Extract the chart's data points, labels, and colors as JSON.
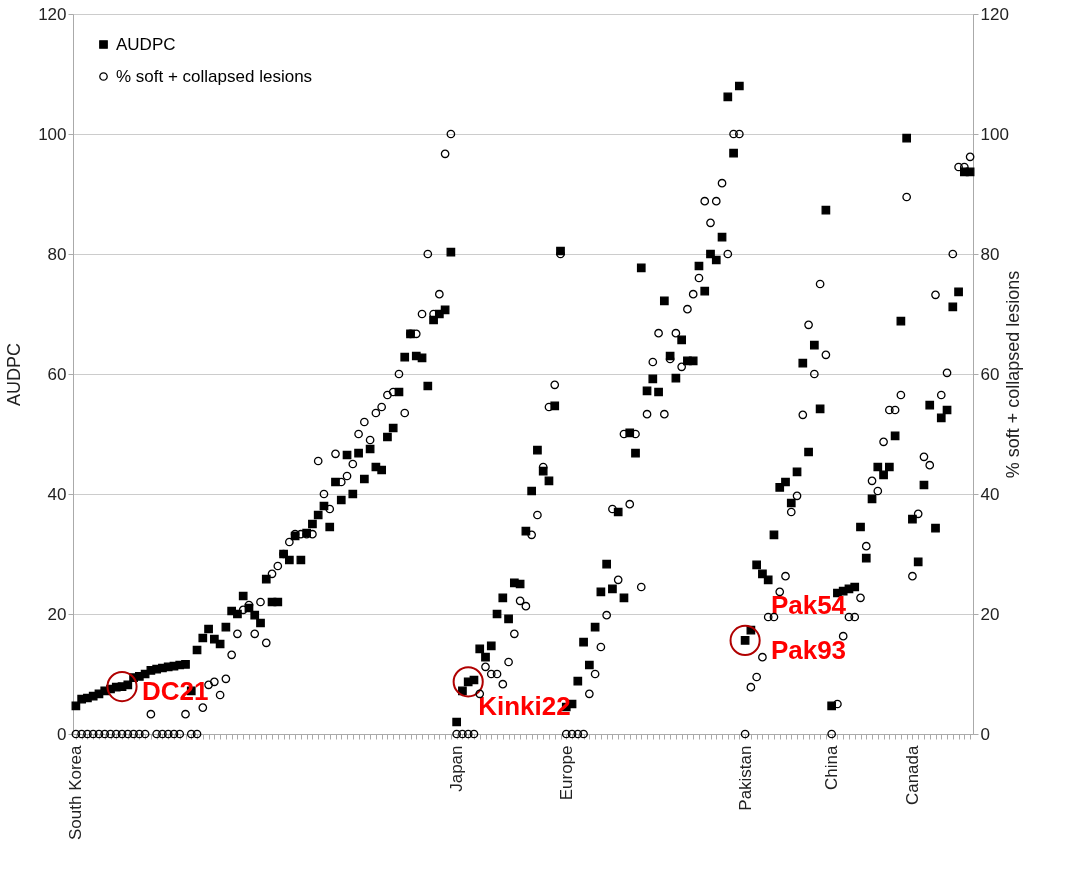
{
  "chart_data": {
    "type": "scatter",
    "ylabel": "AUDPC",
    "y2label": "% soft + collapsed lesions",
    "categories": [
      "South Korea",
      null,
      null,
      null,
      null,
      null,
      null,
      null,
      null,
      null,
      null,
      null,
      null,
      null,
      null,
      null,
      null,
      null,
      null,
      null,
      null,
      null,
      null,
      null,
      null,
      null,
      null,
      null,
      null,
      null,
      null,
      null,
      null,
      null,
      null,
      null,
      null,
      null,
      null,
      null,
      null,
      null,
      null,
      null,
      null,
      null,
      null,
      null,
      null,
      null,
      null,
      null,
      null,
      null,
      null,
      null,
      null,
      null,
      null,
      null,
      null,
      null,
      null,
      null,
      null,
      null,
      "Japan",
      null,
      null,
      null,
      null,
      null,
      null,
      null,
      null,
      null,
      null,
      null,
      null,
      null,
      null,
      null,
      null,
      null,
      null,
      "Europe",
      null,
      null,
      null,
      null,
      null,
      null,
      null,
      null,
      null,
      null,
      null,
      null,
      null,
      null,
      null,
      null,
      null,
      null,
      null,
      null,
      null,
      null,
      null,
      null,
      null,
      null,
      null,
      null,
      null,
      null,
      "Pakistan",
      null,
      null,
      null,
      null,
      null,
      null,
      null,
      null,
      null,
      null,
      null,
      null,
      null,
      null,
      "China",
      null,
      null,
      null,
      null,
      null,
      null,
      null,
      null,
      null,
      null,
      null,
      null,
      null,
      "Canada",
      null,
      null,
      null,
      null,
      null,
      null,
      null,
      null,
      null,
      null
    ],
    "series": [
      {
        "name": "AUDPC",
        "color": "#000000",
        "marker": "square",
        "values": [
          4.7,
          5.8,
          6,
          6.3,
          6.7,
          7.2,
          7.5,
          7.8,
          7.9,
          8.2,
          9.4,
          9.6,
          10,
          10.6,
          10.8,
          11,
          11.2,
          11.3,
          11.5,
          11.6,
          7.2,
          14,
          16,
          17.5,
          15.8,
          15,
          17.8,
          20.5,
          20,
          23,
          21,
          19.8,
          18.5,
          25.8,
          22,
          22,
          30,
          29,
          33,
          29,
          33.5,
          35,
          36.5,
          38,
          34.5,
          42,
          39,
          46.5,
          40,
          46.8,
          42.5,
          47.5,
          44.5,
          44,
          49.5,
          51,
          57,
          62.8,
          66.7,
          63,
          62.7,
          58,
          69,
          70,
          70.7,
          80.3,
          2,
          7.2,
          8.7,
          9,
          14.2,
          12.8,
          14.7,
          20,
          22.7,
          19.2,
          25.2,
          25,
          33.8,
          40.5,
          47.3,
          43.8,
          42.2,
          54.7,
          80.5,
          4.5,
          5,
          8.8,
          15.3,
          11.5,
          17.8,
          23.7,
          28.3,
          24.2,
          37,
          22.7,
          50.2,
          46.8,
          77.7,
          57.2,
          59.2,
          57,
          72.2,
          63,
          59.3,
          65.7,
          62.2,
          62.2,
          78,
          73.8,
          80,
          79,
          82.8,
          106.2,
          96.8,
          108,
          15.6,
          17.3,
          28.2,
          26.7,
          25.7,
          33.2,
          41.1,
          42,
          38.5,
          43.7,
          61.8,
          47,
          64.8,
          54.2,
          87.3,
          4.7,
          23.5,
          23.8,
          24.2,
          24.5,
          34.5,
          29.3,
          39.2,
          44.5,
          43.2,
          44.5,
          49.7,
          68.8,
          99.3,
          35.8,
          28.7,
          41.5,
          54.8,
          34.3,
          52.7,
          54,
          71.2,
          73.7,
          93.7,
          93.7
        ]
      },
      {
        "name": "% soft + collapsed lesions",
        "color": "#000000",
        "marker": "circle",
        "axis": "y2",
        "values": [
          0,
          0,
          0,
          0,
          0,
          0,
          0,
          0,
          0,
          0,
          0,
          0,
          0,
          3.3,
          0,
          0,
          0,
          0,
          0,
          3.3,
          0,
          0,
          4.4,
          8.2,
          8.7,
          6.5,
          9.2,
          13.2,
          16.7,
          20.7,
          21.5,
          16.7,
          22,
          15.2,
          26.7,
          28,
          30,
          32,
          33.3,
          33.3,
          33.3,
          33.3,
          45.5,
          40,
          37.5,
          46.7,
          42,
          43,
          45,
          50,
          52,
          49,
          53.5,
          54.5,
          56.5,
          57,
          60,
          53.5,
          66.7,
          66.7,
          70,
          80,
          70,
          73.3,
          96.7,
          100,
          0,
          0,
          0,
          0,
          6.7,
          11.2,
          10,
          10,
          8.3,
          12,
          16.7,
          22.2,
          21.3,
          33.2,
          36.5,
          44.5,
          54.5,
          58.2,
          80,
          0,
          0,
          0,
          0,
          6.7,
          10,
          14.5,
          19.8,
          37.5,
          25.7,
          50,
          38.3,
          50,
          24.5,
          53.3,
          62,
          66.8,
          53.3,
          62.5,
          66.8,
          61.2,
          70.8,
          73.3,
          76,
          88.8,
          85.2,
          88.8,
          91.8,
          80,
          100,
          100,
          0,
          7.8,
          9.5,
          12.8,
          19.5,
          19.5,
          23.7,
          26.3,
          37,
          39.7,
          53.2,
          68.2,
          60,
          75,
          63.2,
          0,
          5,
          16.3,
          19.5,
          19.5,
          22.7,
          31.3,
          42.2,
          40.5,
          48.7,
          54,
          54,
          56.5,
          89.5,
          26.3,
          36.7,
          46.2,
          44.8,
          73.2,
          56.5,
          60.2,
          80,
          94.5,
          94.5,
          96.2
        ]
      }
    ],
    "ylim": [
      0,
      120
    ],
    "yticks": [
      0,
      20,
      40,
      60,
      80,
      100,
      120
    ],
    "y2lim": [
      0,
      120
    ],
    "y2ticks": [
      0,
      20,
      40,
      60,
      80,
      100,
      120
    ],
    "grid": "y",
    "legend": "top left",
    "annotations": [
      "DC21",
      "Kinki22",
      "Pak54",
      "Pak93"
    ]
  }
}
